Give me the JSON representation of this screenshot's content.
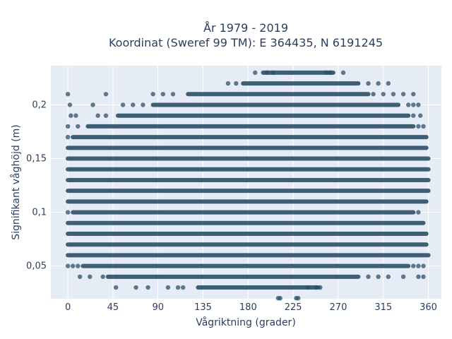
{
  "chart_data": {
    "type": "scatter",
    "title_lines": [
      "År 1979 - 2019",
      "Koordinat (Sweref 99 TM): E 364435, N 6191245"
    ],
    "xlabel": "Vågriktning (grader)",
    "ylabel": "Signifikant våghöjd (m)",
    "xlim": [
      -17,
      373
    ],
    "ylim": [
      0.0195,
      0.2365
    ],
    "xticks": [
      0,
      45,
      90,
      135,
      180,
      225,
      270,
      315,
      360
    ],
    "xtick_labels": [
      "0",
      "45",
      "90",
      "135",
      "180",
      "225",
      "270",
      "315",
      "360"
    ],
    "yticks": [
      0.05,
      0.1,
      0.15,
      0.2
    ],
    "ytick_labels": [
      "0,05",
      "0,1",
      "0,15",
      "0,2"
    ],
    "grid": true,
    "marker_color": "#2d4f66",
    "plot_background": "#e5ecf6",
    "series": [
      {
        "points_note_excluded": true,
        "bands": [
          {
            "y": 0.23,
            "ranges": [
              [
                195,
                265
              ]
            ],
            "sparse": [
              187,
              199,
              205,
              258,
              262,
              275
            ]
          },
          {
            "y": 0.22,
            "ranges": [
              [
                175,
                290
              ]
            ],
            "sparse": [
              160,
              168,
              300,
              310,
              320
            ]
          },
          {
            "y": 0.21,
            "ranges": [
              [
                120,
                300
              ]
            ],
            "sparse": [
              0,
              38,
              85,
              95,
              105,
              305,
              315,
              325,
              335,
              345
            ]
          },
          {
            "y": 0.2,
            "ranges": [
              [
                85,
                330
              ]
            ],
            "sparse": [
              2,
              25,
              55,
              65,
              75,
              340,
              345,
              350
            ]
          },
          {
            "y": 0.19,
            "ranges": [
              [
                50,
                340
              ]
            ],
            "sparse": [
              3,
              8,
              30,
              38,
              345,
              352
            ]
          },
          {
            "y": 0.18,
            "ranges": [
              [
                20,
                345
              ]
            ],
            "sparse": [
              0,
              10,
              350,
              355
            ]
          },
          {
            "y": 0.17,
            "ranges": [
              [
                5,
                358
              ]
            ],
            "sparse": [
              0
            ]
          },
          {
            "y": 0.16,
            "ranges": [
              [
                0,
                358
              ]
            ],
            "sparse": []
          },
          {
            "y": 0.15,
            "ranges": [
              [
                0,
                360
              ]
            ],
            "sparse": []
          },
          {
            "y": 0.14,
            "ranges": [
              [
                0,
                360
              ]
            ],
            "sparse": []
          },
          {
            "y": 0.13,
            "ranges": [
              [
                0,
                360
              ]
            ],
            "sparse": []
          },
          {
            "y": 0.12,
            "ranges": [
              [
                0,
                360
              ]
            ],
            "sparse": []
          },
          {
            "y": 0.11,
            "ranges": [
              [
                0,
                358
              ]
            ],
            "sparse": []
          },
          {
            "y": 0.1,
            "ranges": [
              [
                5,
                345
              ]
            ],
            "sparse": [
              0,
              350
            ]
          },
          {
            "y": 0.09,
            "ranges": [
              [
                0,
                355
              ]
            ],
            "sparse": []
          },
          {
            "y": 0.08,
            "ranges": [
              [
                0,
                358
              ]
            ],
            "sparse": []
          },
          {
            "y": 0.07,
            "ranges": [
              [
                0,
                358
              ]
            ],
            "sparse": []
          },
          {
            "y": 0.06,
            "ranges": [
              [
                0,
                360
              ]
            ],
            "sparse": []
          },
          {
            "y": 0.05,
            "ranges": [
              [
                15,
                340
              ]
            ],
            "sparse": [
              0,
              5,
              10,
              345,
              350,
              355
            ]
          },
          {
            "y": 0.04,
            "ranges": [
              [
                40,
                290
              ]
            ],
            "sparse": [
              12,
              22,
              35,
              300,
              310,
              320,
              335,
              350,
              355
            ]
          },
          {
            "y": 0.03,
            "ranges": [
              [
                130,
                250
              ]
            ],
            "sparse": [
              48,
              68,
              80,
              100,
              110,
              115,
              240,
              248,
              252
            ]
          },
          {
            "y": 0.02,
            "ranges": [],
            "sparse": [
              210,
              212,
              228,
              230
            ]
          }
        ]
      }
    ]
  }
}
